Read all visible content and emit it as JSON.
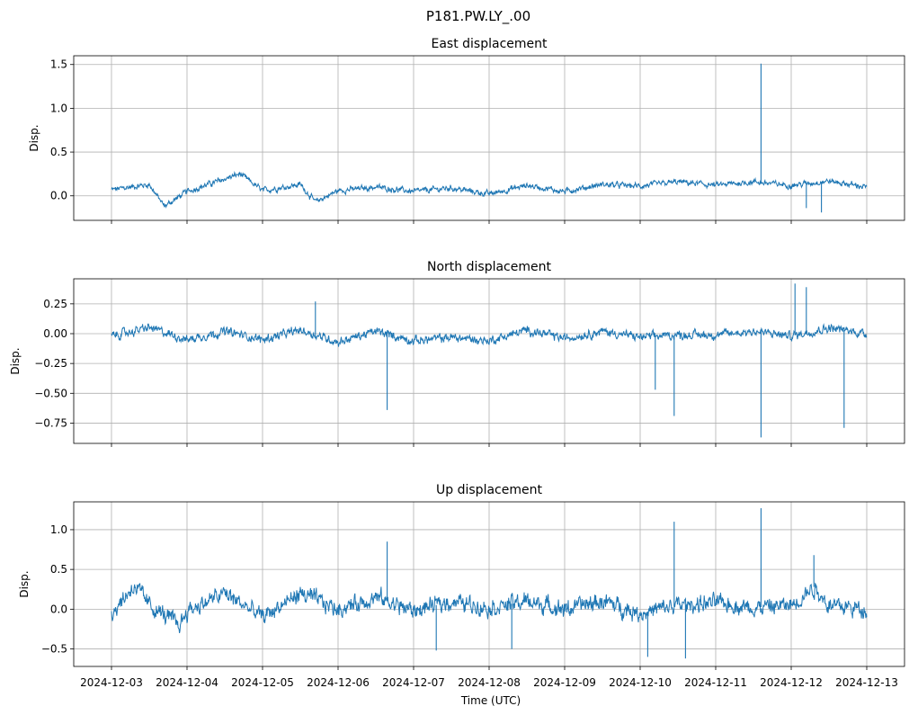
{
  "figure": {
    "suptitle": "P181.PW.LY_.00",
    "xlabel": "Time (UTC)",
    "x_ticks": [
      "2024-12-03",
      "2024-12-04",
      "2024-12-05",
      "2024-12-06",
      "2024-12-07",
      "2024-12-08",
      "2024-12-09",
      "2024-12-10",
      "2024-12-11",
      "2024-12-12",
      "2024-12-13"
    ],
    "line_color": "#1f77b4",
    "grid_color": "#b0b0b0"
  },
  "chart_data": [
    {
      "type": "line",
      "title": "East displacement",
      "ylabel": "Disp.",
      "xlim": [
        "2024-12-02T12:00",
        "2024-12-13T12:00"
      ],
      "ylim": [
        -0.28,
        1.6
      ],
      "yticks": [
        -0.0,
        0.5,
        1.0,
        1.5
      ],
      "ytick_labels": [
        "0.0",
        "0.5",
        "1.0",
        "1.5"
      ],
      "grid": true,
      "x_days": [
        "2024-12-03",
        "2024-12-03T12:00",
        "2024-12-03T16:48",
        "2024-12-04",
        "2024-12-04T16:48",
        "2024-12-05",
        "2024-12-05T12:00",
        "2024-12-05T16:48",
        "2024-12-06",
        "2024-12-06T12:00",
        "2024-12-07",
        "2024-12-07T12:00",
        "2024-12-08",
        "2024-12-08T12:00",
        "2024-12-09",
        "2024-12-09T12:00",
        "2024-12-10",
        "2024-12-10T12:00",
        "2024-12-11",
        "2024-12-11T12:00",
        "2024-12-12",
        "2024-12-12T12:00",
        "2024-12-13"
      ],
      "y": [
        0.07,
        0.13,
        -0.12,
        0.05,
        0.25,
        0.06,
        0.13,
        -0.07,
        0.06,
        0.1,
        0.05,
        0.09,
        0.02,
        0.12,
        0.05,
        0.13,
        0.11,
        0.16,
        0.12,
        0.16,
        0.12,
        0.17,
        0.1
      ],
      "spikes": [
        {
          "x": "2024-12-11T14:24",
          "y": 1.51
        },
        {
          "x": "2024-12-12T09:36",
          "y": -0.19
        },
        {
          "x": "2024-12-12T04:48",
          "y": -0.14
        }
      ]
    },
    {
      "type": "line",
      "title": "North displacement",
      "ylabel": "Disp.",
      "xlim": [
        "2024-12-02T12:00",
        "2024-12-13T12:00"
      ],
      "ylim": [
        -0.92,
        0.46
      ],
      "yticks": [
        0.25,
        0.0,
        -0.25,
        -0.5,
        -0.75
      ],
      "ytick_labels": [
        "0.25",
        "0.00",
        "−0.25",
        "−0.50",
        "−0.75"
      ],
      "grid": true,
      "x_days": [
        "2024-12-03",
        "2024-12-03T12:00",
        "2024-12-04",
        "2024-12-04T12:00",
        "2024-12-05",
        "2024-12-05T12:00",
        "2024-12-06",
        "2024-12-06T12:00",
        "2024-12-07",
        "2024-12-07T12:00",
        "2024-12-08",
        "2024-12-08T12:00",
        "2024-12-09",
        "2024-12-09T12:00",
        "2024-12-10",
        "2024-12-10T12:00",
        "2024-12-11",
        "2024-12-11T12:00",
        "2024-12-12",
        "2024-12-12T12:00",
        "2024-12-13"
      ],
      "y": [
        -0.02,
        0.05,
        -0.05,
        0.02,
        -0.05,
        0.03,
        -0.07,
        0.02,
        -0.06,
        -0.03,
        -0.06,
        0.03,
        -0.04,
        0.02,
        -0.03,
        -0.01,
        -0.01,
        0.02,
        -0.02,
        0.05,
        0.0
      ],
      "spikes": [
        {
          "x": "2024-12-06T15:36",
          "y": -0.64
        },
        {
          "x": "2024-12-10T04:48",
          "y": -0.47
        },
        {
          "x": "2024-12-10T10:48",
          "y": -0.69
        },
        {
          "x": "2024-12-11T14:24",
          "y": -0.87
        },
        {
          "x": "2024-12-12T16:48",
          "y": -0.79
        },
        {
          "x": "2024-12-12T01:12",
          "y": 0.42
        },
        {
          "x": "2024-12-12T04:48",
          "y": 0.39
        },
        {
          "x": "2024-12-05T16:48",
          "y": 0.27
        }
      ]
    },
    {
      "type": "line",
      "title": "Up displacement",
      "ylabel": "Disp.",
      "xlim": [
        "2024-12-02T12:00",
        "2024-12-13T12:00"
      ],
      "ylim": [
        -0.72,
        1.35
      ],
      "yticks": [
        1.0,
        0.5,
        0.0,
        -0.5
      ],
      "ytick_labels": [
        "1.0",
        "0.5",
        "0.0",
        "−0.5"
      ],
      "grid": true,
      "x_days": [
        "2024-12-03",
        "2024-12-03T07:12",
        "2024-12-03T12:00",
        "2024-12-03T21:36",
        "2024-12-04",
        "2024-12-04T12:00",
        "2024-12-05",
        "2024-12-05T12:00",
        "2024-12-06",
        "2024-12-06T12:00",
        "2024-12-07",
        "2024-12-07T12:00",
        "2024-12-08",
        "2024-12-08T12:00",
        "2024-12-09",
        "2024-12-09T12:00",
        "2024-12-10",
        "2024-12-10T12:00",
        "2024-12-11",
        "2024-12-11T12:00",
        "2024-12-12",
        "2024-12-12T07:12",
        "2024-12-12T12:00",
        "2024-12-13"
      ],
      "y": [
        -0.05,
        0.3,
        0.05,
        -0.2,
        -0.02,
        0.2,
        -0.1,
        0.2,
        0.0,
        0.15,
        -0.02,
        0.1,
        0.02,
        0.1,
        0.0,
        0.1,
        -0.05,
        0.05,
        0.08,
        0.02,
        0.05,
        0.28,
        0.05,
        0.0
      ],
      "spikes": [
        {
          "x": "2024-12-06T15:36",
          "y": 0.85
        },
        {
          "x": "2024-12-10T10:48",
          "y": 1.1
        },
        {
          "x": "2024-12-11T14:24",
          "y": 1.27
        },
        {
          "x": "2024-12-12T07:12",
          "y": 0.68
        },
        {
          "x": "2024-12-10T02:24",
          "y": -0.6
        },
        {
          "x": "2024-12-10T14:24",
          "y": -0.62
        },
        {
          "x": "2024-12-07T07:12",
          "y": -0.52
        },
        {
          "x": "2024-12-08T07:12",
          "y": -0.5
        }
      ]
    }
  ]
}
